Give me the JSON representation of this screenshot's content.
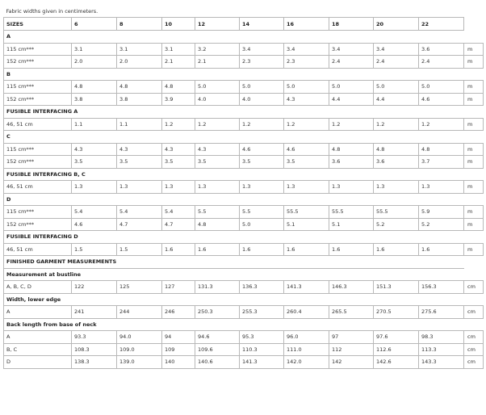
{
  "note": "Fabric widths given in centimeters.",
  "sizes_label": "SIZES",
  "sizes": [
    "6",
    "8",
    "10",
    "12",
    "14",
    "16",
    "18",
    "20",
    "22"
  ],
  "rows": [
    {
      "type": "section",
      "label": "A"
    },
    {
      "type": "data",
      "label": "115 cm***",
      "values": [
        "3.1",
        "3.1",
        "3.1",
        "3.2",
        "3.4",
        "3.4",
        "3.4",
        "3.4",
        "3.6"
      ],
      "unit": "m"
    },
    {
      "type": "data",
      "label": "152 cm***",
      "values": [
        "2.0",
        "2.0",
        "2.1",
        "2.1",
        "2.3",
        "2.3",
        "2.4",
        "2.4",
        "2.4"
      ],
      "unit": "m"
    },
    {
      "type": "section",
      "label": "B"
    },
    {
      "type": "data",
      "label": "115 cm***",
      "values": [
        "4.8",
        "4.8",
        "4.8",
        "5.0",
        "5.0",
        "5.0",
        "5.0",
        "5.0",
        "5.0"
      ],
      "unit": "m"
    },
    {
      "type": "data",
      "label": "152 cm***",
      "values": [
        "3.8",
        "3.8",
        "3.9",
        "4.0",
        "4.0",
        "4.3",
        "4.4",
        "4.4",
        "4.6"
      ],
      "unit": "m"
    },
    {
      "type": "section",
      "label": "FUSIBLE INTERFACING A"
    },
    {
      "type": "data",
      "label": "46, 51 cm",
      "values": [
        "1.1",
        "1.1",
        "1.2",
        "1.2",
        "1.2",
        "1.2",
        "1.2",
        "1.2",
        "1.2"
      ],
      "unit": "m"
    },
    {
      "type": "section",
      "label": "C"
    },
    {
      "type": "data",
      "label": "115 cm***",
      "values": [
        "4.3",
        "4.3",
        "4.3",
        "4.3",
        "4.6",
        "4.6",
        "4.8",
        "4.8",
        "4.8"
      ],
      "unit": "m"
    },
    {
      "type": "data",
      "label": "152 cm***",
      "values": [
        "3.5",
        "3.5",
        "3.5",
        "3.5",
        "3.5",
        "3.5",
        "3.6",
        "3.6",
        "3.7"
      ],
      "unit": "m"
    },
    {
      "type": "section",
      "label": "FUSIBLE INTERFACING B, C"
    },
    {
      "type": "data",
      "label": "46, 51 cm",
      "values": [
        "1.3",
        "1.3",
        "1.3",
        "1.3",
        "1.3",
        "1.3",
        "1.3",
        "1.3",
        "1.3"
      ],
      "unit": "m"
    },
    {
      "type": "section",
      "label": "D"
    },
    {
      "type": "data",
      "label": "115 cm***",
      "values": [
        "5.4",
        "5.4",
        "5.4",
        "5.5",
        "5.5",
        "55.5",
        "55.5",
        "55.5",
        "5.9"
      ],
      "unit": "m"
    },
    {
      "type": "data",
      "label": "152 cm***",
      "values": [
        "4.6",
        "4.7",
        "4.7",
        "4.8",
        "5.0",
        "5.1",
        "5.1",
        "5.2",
        "5.2"
      ],
      "unit": "m"
    },
    {
      "type": "section",
      "label": "FUSIBLE INTERFACING D"
    },
    {
      "type": "data",
      "label": "46, 51 cm",
      "values": [
        "1.5",
        "1.5",
        "1.6",
        "1.6",
        "1.6",
        "1.6",
        "1.6",
        "1.6",
        "1.6"
      ],
      "unit": "m"
    },
    {
      "type": "section",
      "label": "FINISHED GARMENT MEASUREMENTS"
    },
    {
      "type": "section",
      "label": "Measurement at bustline"
    },
    {
      "type": "data",
      "label": "A, B, C, D",
      "values": [
        "122",
        "125",
        "127",
        "131.3",
        "136.3",
        "141.3",
        "146.3",
        "151.3",
        "156.3"
      ],
      "unit": "cm"
    },
    {
      "type": "section",
      "label": "Width, lower edge"
    },
    {
      "type": "data",
      "label": "A",
      "values": [
        "241",
        "244",
        "246",
        "250.3",
        "255.3",
        "260.4",
        "265.5",
        "270.5",
        "275.6"
      ],
      "unit": "cm"
    },
    {
      "type": "section",
      "label": "Back length from base of neck"
    },
    {
      "type": "data",
      "label": "A",
      "values": [
        "93.3",
        "94.0",
        "94",
        "94.6",
        "95.3",
        "96.0",
        "97",
        "97.6",
        "98.3"
      ],
      "unit": "cm"
    },
    {
      "type": "data",
      "label": "B, C",
      "values": [
        "108.3",
        "109.0",
        "109",
        "109.6",
        "110.3",
        "111.0",
        "112",
        "112.6",
        "113.3"
      ],
      "unit": "cm"
    },
    {
      "type": "data",
      "label": "D",
      "values": [
        "138.3",
        "139.0",
        "140",
        "140.6",
        "141.3",
        "142.0",
        "142",
        "142.6",
        "143.3"
      ],
      "unit": "cm"
    }
  ]
}
